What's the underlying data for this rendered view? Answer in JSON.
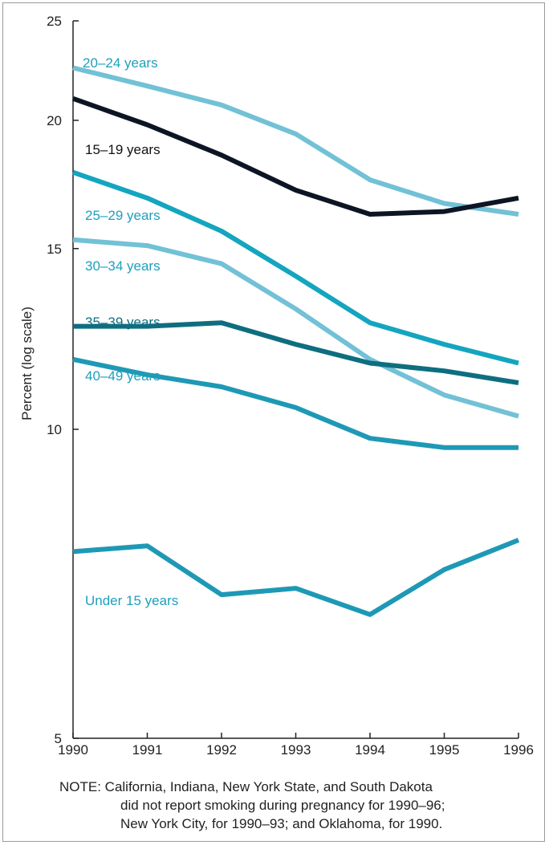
{
  "chart_data": {
    "type": "line",
    "ylabel": "Percent (log scale)",
    "yscale": "log",
    "ylim": [
      5,
      25
    ],
    "xlim": [
      1990,
      1996
    ],
    "x": [
      1990,
      1991,
      1992,
      1993,
      1994,
      1995,
      1996
    ],
    "x_tick_labels": [
      "1990",
      "1991",
      "1992",
      "1993",
      "1994",
      "1995",
      "1996"
    ],
    "y_ticks": [
      5,
      10,
      15,
      20,
      25
    ],
    "y_tick_labels": [
      "5",
      "10",
      "15",
      "20",
      "25"
    ],
    "grid": false,
    "series": [
      {
        "name": "20–24 years",
        "values": [
          22.5,
          21.6,
          20.7,
          19.4,
          17.5,
          16.6,
          16.2
        ],
        "color": "#72c1d6"
      },
      {
        "name": "15–19 years",
        "values": [
          21.0,
          19.8,
          18.5,
          17.1,
          16.2,
          16.3,
          16.8
        ],
        "color": "#0d1525"
      },
      {
        "name": "25–29 years",
        "values": [
          17.8,
          16.8,
          15.6,
          14.1,
          12.7,
          12.1,
          11.6
        ],
        "color": "#14a5bf"
      },
      {
        "name": "30–34 years",
        "values": [
          15.3,
          15.1,
          14.5,
          13.1,
          11.7,
          10.8,
          10.3
        ],
        "color": "#72c1d6"
      },
      {
        "name": "35–39 years",
        "values": [
          12.6,
          12.6,
          12.7,
          12.1,
          11.6,
          11.4,
          11.1
        ],
        "color": "#0e6e80"
      },
      {
        "name": "40–49 years",
        "values": [
          11.7,
          11.3,
          11.0,
          10.5,
          9.8,
          9.6,
          9.6
        ],
        "color": "#1e99b5"
      },
      {
        "name": "Under 15 years",
        "values": [
          7.6,
          7.7,
          6.9,
          7.0,
          6.6,
          7.3,
          7.8
        ],
        "color": "#1e99b5"
      }
    ]
  },
  "note": {
    "line1": "NOTE: California, Indiana, New York State, and South Dakota",
    "line2": "did not report smoking during pregnancy for 1990–96;",
    "line3": "New York City, for 1990–93; and Oklahoma, for 1990."
  }
}
